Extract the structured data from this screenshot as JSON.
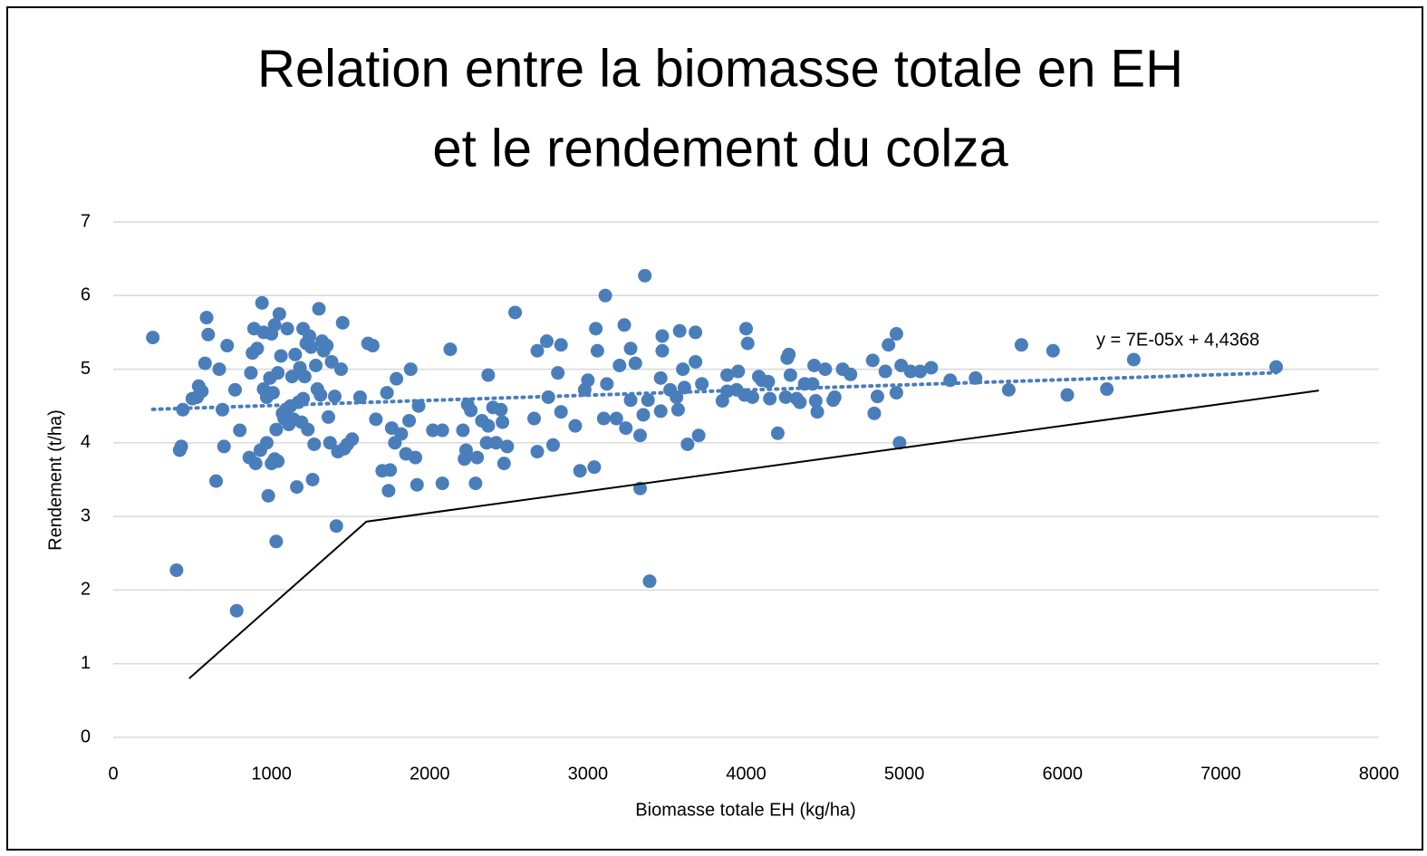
{
  "chart_data": {
    "type": "scatter",
    "title": [
      "Relation entre la biomasse totale en EH",
      "et le rendement du colza"
    ],
    "x_label": "Biomasse totale EH (kg/ha)",
    "y_label": "Rendement (t/ha)",
    "xlim": [
      0,
      8000
    ],
    "xticks": [
      0,
      1000,
      2000,
      3000,
      4000,
      5000,
      6000,
      7000,
      8000
    ],
    "ylim": [
      0,
      7
    ],
    "yticks": [
      0,
      1,
      2,
      3,
      4,
      5,
      6,
      7
    ],
    "grid": true,
    "series": [
      {
        "color": "#4a7ebb",
        "x": [
          250,
          400,
          420,
          430,
          440,
          500,
          530,
          540,
          560,
          580,
          590,
          600,
          650,
          670,
          690,
          700,
          720,
          770,
          780,
          800,
          860,
          870,
          880,
          890,
          900,
          910,
          930,
          940,
          950,
          950,
          970,
          970,
          980,
          990,
          1000,
          1000,
          1010,
          1020,
          1020,
          1030,
          1030,
          1040,
          1040,
          1050,
          1060,
          1070,
          1080,
          1090,
          1100,
          1110,
          1120,
          1130,
          1140,
          1150,
          1160,
          1170,
          1180,
          1190,
          1200,
          1200,
          1210,
          1220,
          1230,
          1240,
          1250,
          1260,
          1270,
          1280,
          1290,
          1300,
          1310,
          1320,
          1330,
          1350,
          1360,
          1370,
          1380,
          1400,
          1410,
          1420,
          1440,
          1450,
          1460,
          1480,
          1510,
          1560,
          1610,
          1640,
          1660,
          1700,
          1730,
          1740,
          1750,
          1760,
          1780,
          1790,
          1820,
          1850,
          1870,
          1880,
          1910,
          1920,
          1930,
          2020,
          2080,
          2080,
          2130,
          2210,
          2220,
          2230,
          2240,
          2260,
          2290,
          2300,
          2330,
          2360,
          2370,
          2370,
          2400,
          2420,
          2450,
          2460,
          2470,
          2490,
          2540,
          2660,
          2680,
          2680,
          2740,
          2750,
          2780,
          2810,
          2830,
          2830,
          2920,
          2950,
          2980,
          3000,
          3040,
          3050,
          3060,
          3100,
          3110,
          3120,
          3180,
          3200,
          3230,
          3240,
          3270,
          3270,
          3300,
          3330,
          3330,
          3350,
          3360,
          3380,
          3390,
          3460,
          3460,
          3470,
          3470,
          3520,
          3560,
          3570,
          3580,
          3600,
          3610,
          3630,
          3680,
          3680,
          3700,
          3720,
          3850,
          3880,
          3880,
          3940,
          3950,
          3990,
          4000,
          4010,
          4040,
          4080,
          4100,
          4140,
          4150,
          4200,
          4250,
          4260,
          4270,
          4280,
          4320,
          4340,
          4370,
          4420,
          4430,
          4440,
          4450,
          4500,
          4550,
          4560,
          4610,
          4660,
          4800,
          4810,
          4830,
          4880,
          4900,
          4950,
          4950,
          4970,
          4980,
          5040,
          5100,
          5170,
          5290,
          5450,
          5660,
          5740,
          5940,
          6030,
          6280,
          6450,
          7350
        ],
        "values": [
          5.43,
          2.27,
          3.9,
          3.95,
          4.45,
          4.6,
          4.62,
          4.77,
          4.7,
          5.08,
          5.7,
          5.47,
          3.48,
          5.0,
          4.45,
          3.95,
          5.32,
          4.72,
          1.72,
          4.17,
          3.8,
          4.95,
          5.22,
          5.55,
          3.72,
          5.28,
          3.9,
          5.9,
          4.73,
          5.5,
          4.62,
          4.0,
          3.28,
          4.88,
          3.72,
          5.48,
          4.68,
          3.78,
          5.6,
          2.66,
          4.18,
          4.95,
          3.75,
          5.75,
          5.18,
          4.4,
          4.33,
          4.45,
          5.55,
          4.25,
          4.5,
          4.9,
          4.32,
          5.2,
          3.4,
          4.55,
          5.02,
          4.28,
          5.55,
          4.6,
          4.9,
          5.35,
          4.18,
          5.45,
          5.3,
          3.5,
          3.98,
          5.05,
          4.73,
          5.82,
          4.65,
          5.38,
          5.25,
          5.32,
          4.35,
          4.0,
          5.1,
          4.63,
          2.87,
          3.88,
          5.0,
          5.63,
          3.92,
          3.98,
          4.05,
          4.62,
          5.35,
          5.32,
          4.32,
          3.62,
          4.68,
          3.35,
          3.63,
          4.2,
          4.0,
          4.87,
          4.12,
          3.85,
          4.3,
          5.0,
          3.8,
          3.43,
          4.5,
          4.17,
          4.17,
          3.45,
          5.27,
          4.17,
          3.78,
          3.9,
          4.52,
          4.44,
          3.45,
          3.8,
          4.3,
          4.0,
          4.23,
          4.92,
          4.48,
          4.0,
          4.45,
          4.28,
          3.72,
          3.95,
          5.77,
          4.33,
          3.88,
          5.25,
          5.38,
          4.62,
          3.97,
          4.95,
          4.42,
          5.33,
          4.23,
          3.62,
          4.72,
          4.85,
          3.67,
          5.55,
          5.25,
          4.33,
          6.0,
          4.8,
          4.33,
          5.05,
          5.6,
          4.2,
          4.58,
          5.28,
          5.08,
          3.38,
          4.1,
          4.38,
          6.27,
          4.58,
          2.12,
          4.43,
          4.88,
          5.25,
          5.45,
          4.72,
          4.62,
          4.45,
          5.52,
          5.0,
          4.75,
          3.98,
          5.1,
          5.5,
          4.1,
          4.8,
          4.57,
          4.92,
          4.7,
          4.72,
          4.97,
          4.65,
          5.55,
          5.35,
          4.62,
          4.9,
          4.85,
          4.83,
          4.6,
          4.13,
          4.62,
          5.15,
          5.2,
          4.92,
          4.6,
          4.55,
          4.8,
          4.8,
          5.05,
          4.57,
          4.42,
          5.0,
          4.58,
          4.62,
          5.0,
          4.93,
          5.12,
          4.4,
          4.63,
          4.97,
          5.33,
          5.48,
          4.68,
          4.0,
          5.05,
          4.97,
          4.97,
          5.02,
          4.85,
          4.88,
          4.72,
          5.33,
          5.25,
          4.65,
          4.73,
          5.13,
          5.03
        ]
      }
    ],
    "trendline": {
      "color": "#4a7ebb",
      "x": [
        250,
        7350
      ],
      "values": [
        4.4543,
        4.9513
      ],
      "label": "y = 7E-05x + 4,4368"
    },
    "boundary_line": {
      "color": "#000000",
      "x": [
        480,
        1600,
        7620
      ],
      "values": [
        0.8,
        2.93,
        4.71
      ]
    }
  }
}
